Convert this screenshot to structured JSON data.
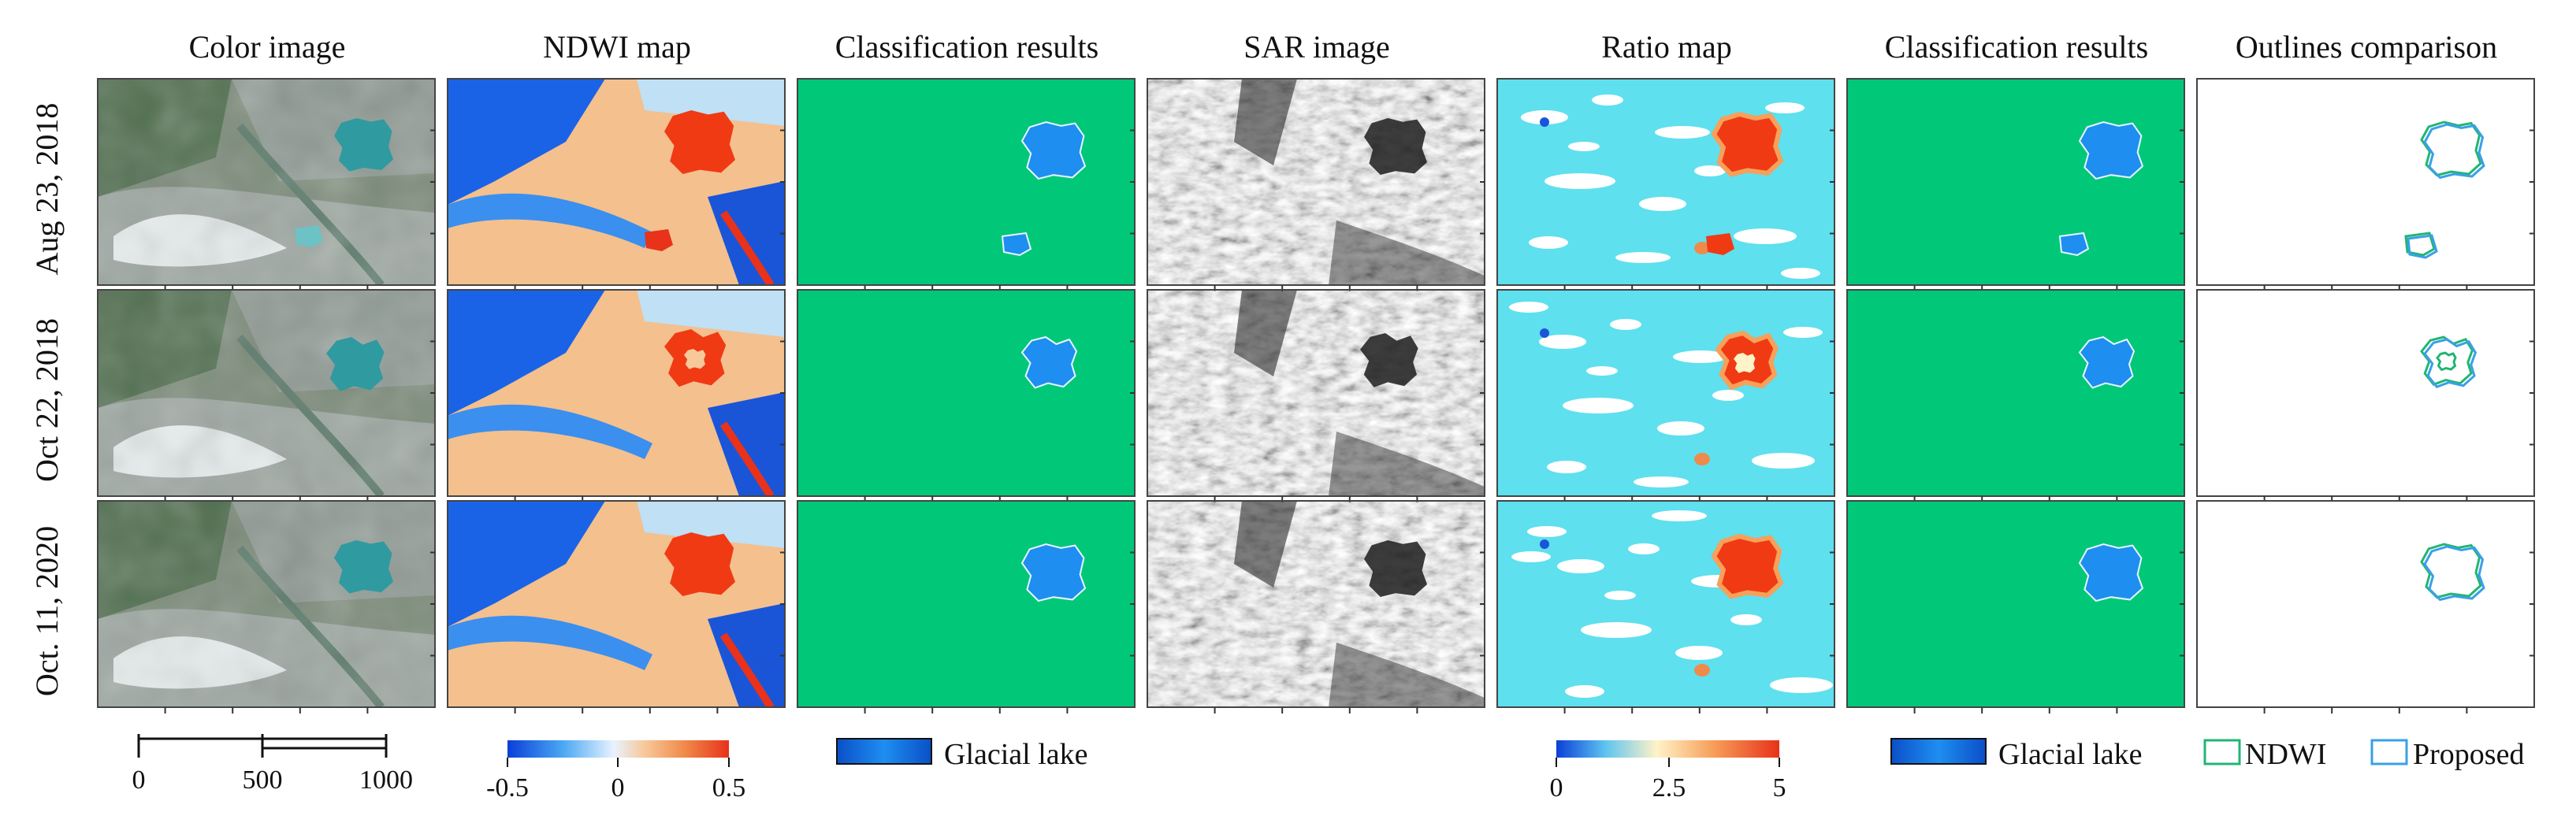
{
  "columns": [
    {
      "title": "Color image"
    },
    {
      "title": "NDWI map"
    },
    {
      "title": "Classification results"
    },
    {
      "title": "SAR image"
    },
    {
      "title": "Ratio map"
    },
    {
      "title": "Classification results"
    },
    {
      "title": "Outlines comparison"
    }
  ],
  "rows": [
    {
      "label": "Aug 23, 2018"
    },
    {
      "label": "Oct 22, 2018"
    },
    {
      "label": "Oct. 11, 2020"
    }
  ],
  "scalebar": {
    "ticks": [
      "0",
      "500",
      "1000"
    ]
  },
  "ndwi_colorbar": {
    "ticks": [
      "-0.5",
      "0",
      "0.5"
    ],
    "colors": [
      "#0a3fd8",
      "#4aa8f2",
      "#e8f2ff",
      "#f7c89a",
      "#f08a4a",
      "#e8321a"
    ]
  },
  "ratio_colorbar": {
    "ticks": [
      "0",
      "2.5",
      "5"
    ],
    "colors": [
      "#0a3fd8",
      "#5ec4f0",
      "#fff3c8",
      "#f7a05a",
      "#e8321a"
    ]
  },
  "legend_glacial_1": {
    "label": "Glacial lake",
    "color": "#1e8ef0"
  },
  "legend_glacial_2": {
    "label": "Glacial lake",
    "color": "#1e8ef0"
  },
  "legend_outlines": {
    "ndwi_label": "NDWI",
    "ndwi_color": "#22b573",
    "proposed_label": "Proposed",
    "proposed_color": "#3aa0e8"
  },
  "colors": {
    "background_green": "#00c878",
    "lake_blue": "#1e8ef0",
    "ratio_cyan": "#5ee0ee",
    "ndwi_red": "#f03a14"
  }
}
